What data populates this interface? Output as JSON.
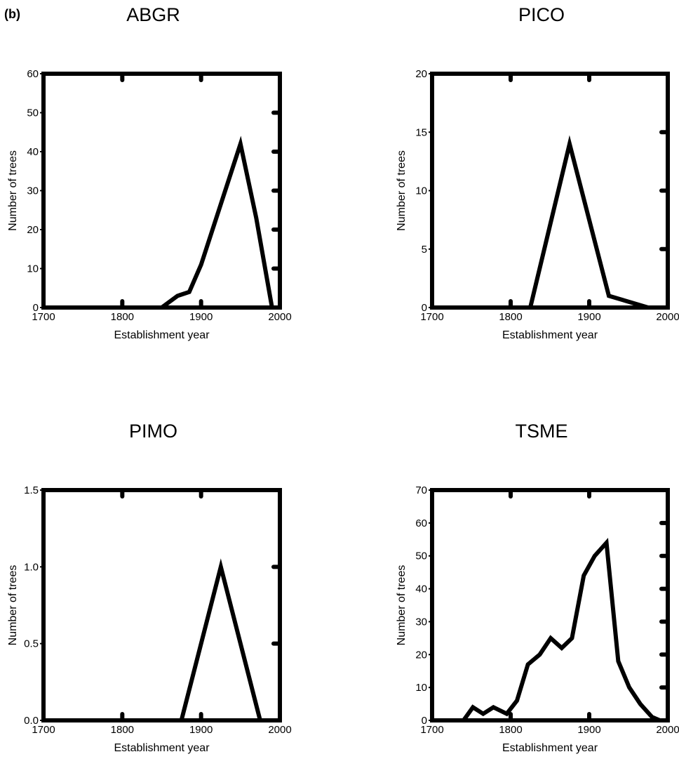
{
  "panel_label": "(b)",
  "chart_data": [
    {
      "type": "line",
      "title": "ABGR",
      "xlabel": "Establishment year",
      "ylabel": "Number of trees",
      "xlim": [
        1700,
        2000
      ],
      "ylim": [
        0,
        60
      ],
      "xticks": [
        1700,
        1800,
        1900,
        2000
      ],
      "yticks": [
        0,
        10,
        20,
        30,
        40,
        50,
        60
      ],
      "ytick_labels": [
        "0",
        "10",
        "20",
        "30",
        "40",
        "50",
        "60"
      ],
      "x": [
        1700,
        1850,
        1870,
        1885,
        1900,
        1950,
        1970,
        1990
      ],
      "y": [
        0,
        0,
        3,
        4,
        11,
        42,
        23,
        0
      ]
    },
    {
      "type": "line",
      "title": "PICO",
      "xlabel": "Establishment year",
      "ylabel": "Number of trees",
      "xlim": [
        1700,
        2000
      ],
      "ylim": [
        0,
        20
      ],
      "xticks": [
        1700,
        1800,
        1900,
        2000
      ],
      "yticks": [
        0,
        5,
        10,
        15,
        20
      ],
      "ytick_labels": [
        "0",
        "5",
        "10",
        "15",
        "20"
      ],
      "x": [
        1700,
        1825,
        1875,
        1925,
        1975
      ],
      "y": [
        0,
        0,
        14,
        1,
        0
      ]
    },
    {
      "type": "line",
      "title": "PIMO",
      "xlabel": "Establishment year",
      "ylabel": "Number of trees",
      "xlim": [
        1700,
        2000
      ],
      "ylim": [
        0,
        1.5
      ],
      "xticks": [
        1700,
        1800,
        1900,
        2000
      ],
      "yticks": [
        0,
        0.5,
        1.0,
        1.5
      ],
      "ytick_labels": [
        "0.0",
        "0.5",
        "1.0",
        "1.5"
      ],
      "x": [
        1700,
        1875,
        1925,
        1975
      ],
      "y": [
        0,
        0,
        1,
        0
      ]
    },
    {
      "type": "line",
      "title": "TSME",
      "xlabel": "Establishment year",
      "ylabel": "Number of trees",
      "xlim": [
        1700,
        2000
      ],
      "ylim": [
        0,
        70
      ],
      "xticks": [
        1700,
        1800,
        1900,
        2000
      ],
      "yticks": [
        0,
        10,
        20,
        30,
        40,
        50,
        60,
        70
      ],
      "ytick_labels": [
        "0",
        "10",
        "20",
        "30",
        "40",
        "50",
        "60",
        "70"
      ],
      "x": [
        1700,
        1740,
        1752,
        1765,
        1778,
        1795,
        1808,
        1822,
        1837,
        1851,
        1865,
        1878,
        1893,
        1907,
        1922,
        1937,
        1951,
        1965,
        1980,
        1990
      ],
      "y": [
        0,
        0,
        4,
        2,
        4,
        2,
        6,
        17,
        20,
        25,
        22,
        25,
        44,
        50,
        54,
        18,
        10,
        5,
        1,
        0
      ]
    }
  ]
}
